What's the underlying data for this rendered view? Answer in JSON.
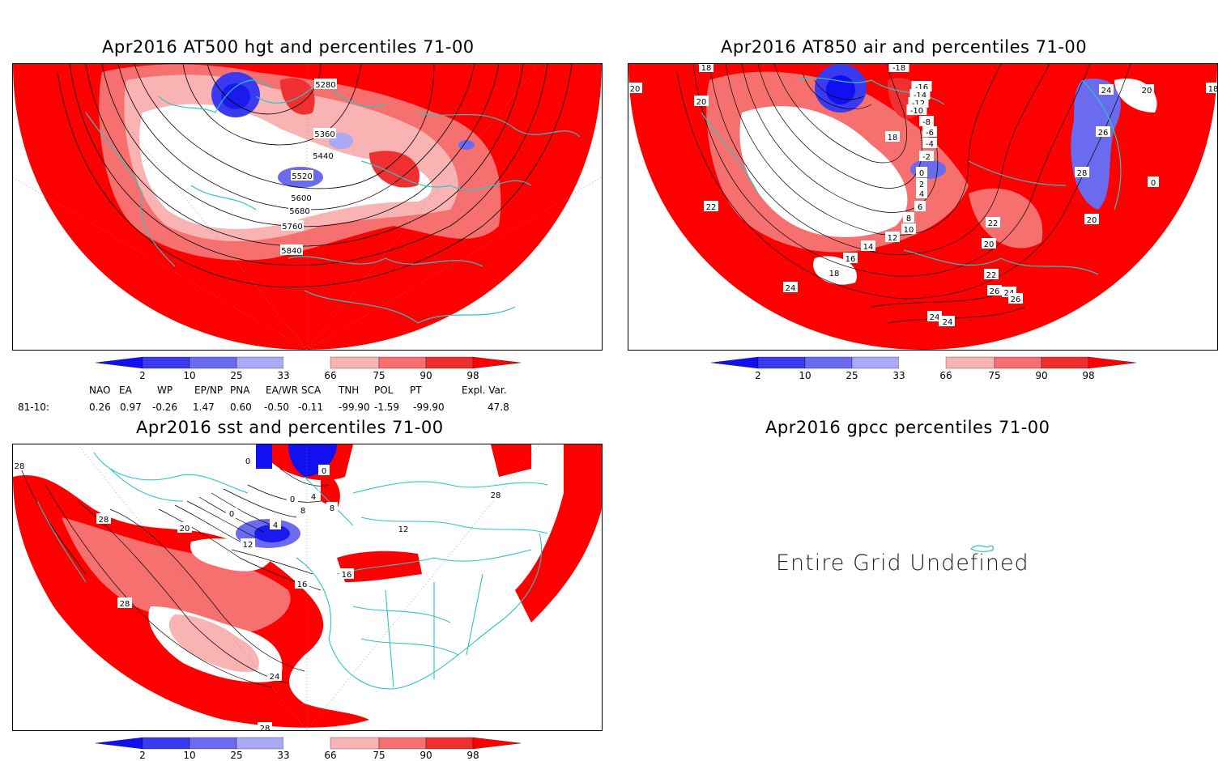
{
  "panels": {
    "hgt": {
      "title": "Apr2016 AT500 hgt and percentiles 71-00",
      "contour_labels": [
        "5280",
        "5360",
        "5440",
        "5520",
        "5600",
        "5680",
        "5760",
        "5840"
      ]
    },
    "air": {
      "title": "Apr2016 AT850 air and percentiles 71-00",
      "contour_labels": [
        "-18",
        "-16",
        "-14",
        "-12",
        "-10",
        "-8",
        "-6",
        "-4",
        "-2",
        "0",
        "2",
        "4",
        "6",
        "8",
        "10",
        "12",
        "14",
        "16",
        "18",
        "20",
        "22",
        "24",
        "26",
        "28",
        "0",
        "18",
        "18",
        "20",
        "20",
        "22",
        "24",
        "20",
        "22",
        "26",
        "24",
        "24",
        "22",
        "26",
        "20",
        "24",
        "18"
      ]
    },
    "sst": {
      "title": "Apr2016 sst and percentiles 71-00",
      "contour_labels": [
        "0",
        "0",
        "0",
        "0",
        "4",
        "8",
        "12",
        "16",
        "20",
        "24",
        "28",
        "28",
        "28",
        "28",
        "8",
        "12",
        "16",
        "28",
        "4"
      ]
    },
    "gpcc": {
      "title": "Apr2016 gpcc percentiles 71-00",
      "message": "Entire Grid Undefined"
    }
  },
  "colorbar": {
    "labels": [
      "2",
      "10",
      "25",
      "33",
      "66",
      "75",
      "90",
      "98"
    ],
    "colors": [
      "#1010f0",
      "#3a3af0",
      "#6b6bf0",
      "#a9a9f5",
      "#ffffff",
      "#f9b3b3",
      "#f77070",
      "#f03030",
      "#ff0000"
    ]
  },
  "teleconnections": {
    "headers": [
      "NAO",
      "EA",
      "WP",
      "EP/NP",
      "PNA",
      "EA/WR",
      "SCA",
      "TNH",
      "POL",
      "PT",
      "Expl. Var."
    ],
    "row_label": "81-10:",
    "values": [
      "0.26",
      "0.97",
      "-0.26",
      "1.47",
      "0.60",
      "-0.50",
      "-0.11",
      "-99.90",
      "-1.59",
      "-99.90",
      "47.8"
    ]
  },
  "colors": {
    "coast": "#2ec4c4",
    "red": "#ff0000",
    "blue": "#3030ee"
  }
}
